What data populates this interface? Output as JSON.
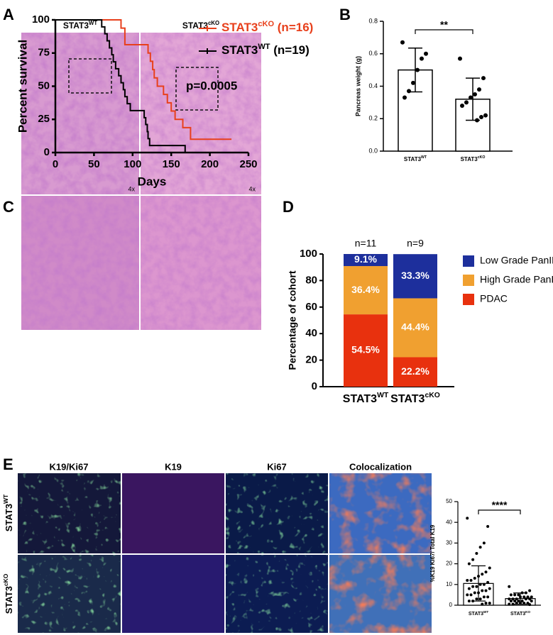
{
  "panel_labels": [
    "A",
    "B",
    "C",
    "D",
    "E"
  ],
  "histology": {
    "columns": [
      {
        "base": "STAT3",
        "sup": "WT"
      },
      {
        "base": "STAT3",
        "sup": "cKO"
      }
    ],
    "magnification": [
      "4x",
      "4x"
    ]
  },
  "microscopy": {
    "columns": [
      "K19/Ki67",
      "K19",
      "Ki67",
      "Colocalization"
    ],
    "rows": [
      {
        "base": "STAT3",
        "sup": "WT"
      },
      {
        "base": "STAT3",
        "sup": "cKO"
      }
    ]
  },
  "chart_data": [
    {
      "type": "line",
      "xlabel": "Days",
      "ylabel": "Percent survival",
      "annotation": "p=0.0005",
      "xlim": [
        0,
        250
      ],
      "xticks": [
        0,
        50,
        100,
        150,
        200,
        250
      ],
      "ylim": [
        0,
        100
      ],
      "yticks": [
        0,
        25,
        50,
        75,
        100
      ],
      "series": [
        {
          "name": "STAT3",
          "name_sup": "cKO",
          "name_tail": " (n=16)",
          "color": "#e8401c",
          "x": [
            0,
            85,
            90,
            120,
            123,
            126,
            128,
            132,
            140,
            145,
            150,
            155,
            165,
            175,
            228
          ],
          "values": [
            100,
            93.8,
            81.3,
            75,
            68.8,
            62.5,
            56.3,
            50,
            43.8,
            37.5,
            31.3,
            25,
            18.8,
            10,
            10
          ]
        },
        {
          "name": "STAT3",
          "name_sup": "WT",
          "name_tail": " (n=19)",
          "color": "#000000",
          "x": [
            0,
            60,
            64,
            67,
            70,
            73,
            75,
            78,
            82,
            85,
            88,
            90,
            93,
            97,
            115,
            117,
            119,
            120,
            122,
            168
          ],
          "values": [
            100,
            94.7,
            89.5,
            84.2,
            78.9,
            73.7,
            68.4,
            63.2,
            57.9,
            52.6,
            47.4,
            42.1,
            36.8,
            31.6,
            26.3,
            21.1,
            15.8,
            10.5,
            5.3,
            0
          ]
        }
      ]
    },
    {
      "type": "bar",
      "ylabel": "Pancreas weight (g)",
      "significance": "**",
      "categories": [
        "STAT3",
        "STAT3"
      ],
      "category_sups": [
        "WT",
        "cKO"
      ],
      "values": [
        0.5,
        0.32
      ],
      "errors": [
        0.135,
        0.13
      ],
      "points": [
        [
          0.67,
          0.6,
          0.57,
          0.5,
          0.42,
          0.37,
          0.33
        ],
        [
          0.57,
          0.45,
          0.38,
          0.35,
          0.33,
          0.3,
          0.28,
          0.22,
          0.21,
          0.19
        ]
      ],
      "ylim": [
        0,
        0.8
      ],
      "yticks": [
        {
          "value": 0,
          "label": "0.0"
        },
        0.2,
        0.4,
        0.6,
        0.8
      ]
    },
    {
      "type": "stacked_bar",
      "ylabel": "Percentage of cohort",
      "categories": [
        "STAT3",
        "STAT3"
      ],
      "category_sups": [
        "WT",
        "cKO"
      ],
      "bar_top_labels": [
        "n=11",
        "n=9"
      ],
      "ylim": [
        0,
        100
      ],
      "yticks": [
        0,
        20,
        40,
        60,
        80,
        100
      ],
      "series": [
        {
          "name": "Low Grade PanIN",
          "color": "#1d2f9c",
          "values": [
            9.1,
            33.3
          ],
          "value_labels": [
            "9.1%",
            "33.3%"
          ]
        },
        {
          "name": "High Grade PanIN",
          "color": "#f0a030",
          "values": [
            36.4,
            44.4
          ],
          "value_labels": [
            "36.4%",
            "44.4%"
          ]
        },
        {
          "name": "PDAC",
          "color": "#e8310e",
          "values": [
            54.5,
            22.2
          ],
          "value_labels": [
            "54.5%",
            "22.2%"
          ]
        }
      ]
    },
    {
      "type": "bar",
      "ylabel": "%K19 Ki67/ Total K19",
      "significance": "****",
      "categories": [
        "STAT3",
        "STAT3"
      ],
      "category_sups": [
        "WT",
        "KO"
      ],
      "values": [
        10.5,
        3.2
      ],
      "errors": [
        8.5,
        2.7
      ],
      "points": [
        [
          42,
          38,
          30,
          28,
          25,
          22,
          20,
          18,
          16,
          15,
          14,
          13,
          12,
          12,
          11,
          10,
          10,
          9,
          9,
          8,
          8,
          7,
          7,
          6,
          6,
          5,
          5,
          4,
          4,
          3,
          3,
          2,
          2,
          1,
          1,
          0.5
        ],
        [
          9,
          7,
          6,
          6,
          5,
          5,
          5,
          4,
          4,
          4,
          4,
          3,
          3,
          3,
          3,
          3,
          2,
          2,
          2,
          2,
          2,
          1,
          1,
          1,
          1,
          0.5,
          0.5,
          0.3
        ]
      ],
      "ylim": [
        0,
        50
      ],
      "yticks": [
        0,
        10,
        20,
        30,
        40,
        50
      ]
    }
  ]
}
